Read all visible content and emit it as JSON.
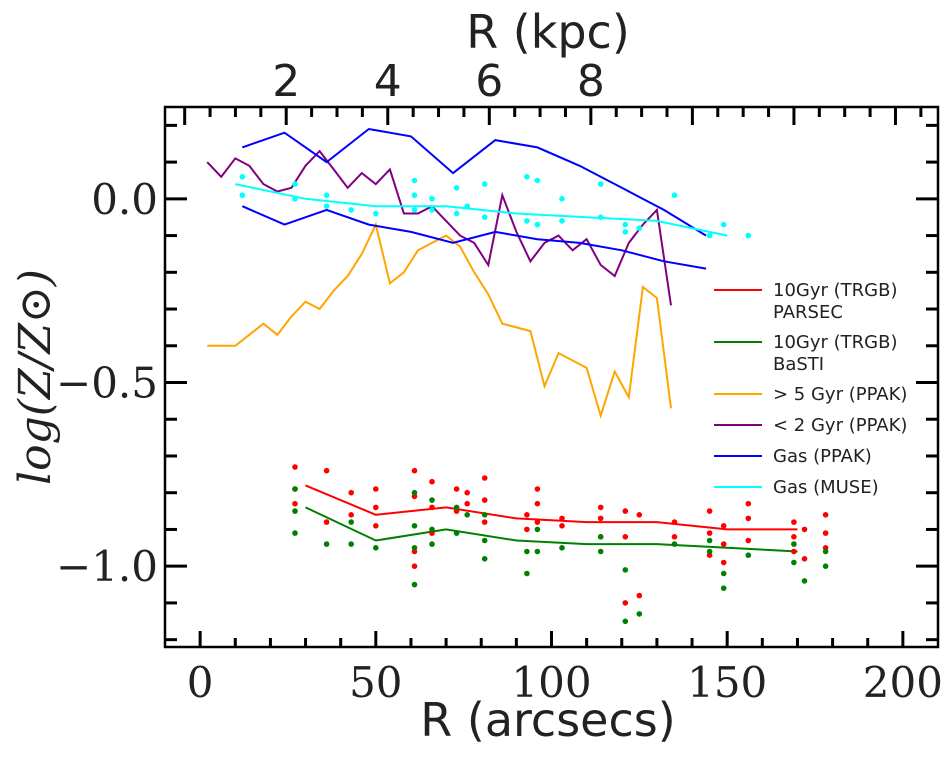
{
  "chart_data": {
    "type": "line",
    "xlabel": "R (arcsecs)",
    "ylabel": "log(Z/Z⊙)",
    "top_xlabel": "R (kpc)",
    "xlim": [
      -10,
      210
    ],
    "ylim": [
      -1.22,
      0.25
    ],
    "x_ticks": [
      0,
      50,
      100,
      150,
      200
    ],
    "x_tick_labels": [
      "0",
      "50",
      "100",
      "150",
      "200"
    ],
    "y_ticks": [
      0.0,
      -0.5,
      -1.0
    ],
    "y_tick_labels": [
      "0.0",
      "−0.5",
      "−1.0"
    ],
    "top_ticks_arcsec": [
      24.5,
      53.4,
      82.3,
      111.2
    ],
    "top_tick_labels": [
      "2",
      "4",
      "6",
      "8"
    ],
    "grid": false,
    "legend_position": "center-right",
    "series": [
      {
        "name": "10Gyr (TRGB)\nPARSEC",
        "color": "#ff0000",
        "x": [
          30,
          50,
          70,
          90,
          110,
          130,
          150,
          170
        ],
        "y": [
          -0.78,
          -0.86,
          -0.84,
          -0.87,
          -0.88,
          -0.88,
          -0.9,
          -0.9
        ]
      },
      {
        "name": "10Gyr (TRGB)\nBaSTI",
        "color": "#008000",
        "x": [
          30,
          50,
          70,
          90,
          110,
          130,
          150,
          170
        ],
        "y": [
          -0.84,
          -0.93,
          -0.9,
          -0.93,
          -0.94,
          -0.94,
          -0.95,
          -0.96
        ]
      },
      {
        "name": "> 5 Gyr (PPAK)",
        "color": "#ffa500",
        "x": [
          2,
          6,
          10,
          14,
          18,
          22,
          26,
          30,
          34,
          38,
          42,
          46,
          50,
          54,
          58,
          62,
          66,
          70,
          74,
          78,
          82,
          86,
          90,
          94,
          98,
          102,
          106,
          110,
          114,
          118,
          122,
          126,
          130,
          134
        ],
        "y": [
          -0.4,
          -0.4,
          -0.4,
          -0.37,
          -0.34,
          -0.37,
          -0.32,
          -0.28,
          -0.3,
          -0.25,
          -0.21,
          -0.15,
          -0.07,
          -0.23,
          -0.2,
          -0.14,
          -0.12,
          -0.1,
          -0.13,
          -0.2,
          -0.26,
          -0.34,
          -0.35,
          -0.36,
          -0.51,
          -0.42,
          -0.44,
          -0.46,
          -0.59,
          -0.47,
          -0.54,
          -0.24,
          -0.27,
          -0.57
        ]
      },
      {
        "name": "< 2 Gyr (PPAK)",
        "color": "#800080",
        "x": [
          2,
          6,
          10,
          14,
          18,
          22,
          26,
          30,
          34,
          38,
          42,
          46,
          50,
          54,
          58,
          62,
          66,
          70,
          74,
          78,
          82,
          86,
          90,
          94,
          98,
          102,
          106,
          110,
          114,
          118,
          122,
          126,
          130,
          134
        ],
        "y": [
          0.1,
          0.06,
          0.11,
          0.09,
          0.04,
          0.02,
          0.03,
          0.09,
          0.13,
          0.08,
          0.03,
          0.07,
          0.04,
          0.08,
          -0.04,
          -0.04,
          -0.02,
          -0.06,
          -0.1,
          -0.12,
          -0.18,
          0.01,
          -0.09,
          -0.17,
          -0.12,
          -0.1,
          -0.14,
          -0.11,
          -0.18,
          -0.21,
          -0.12,
          -0.07,
          -0.03,
          -0.29
        ]
      },
      {
        "name": "Gas (PPAK)",
        "color": "#0000ff",
        "x": [
          12,
          24,
          36,
          48,
          60,
          72,
          84,
          96,
          108,
          120,
          132,
          144
        ],
        "y": [
          0.14,
          0.18,
          0.1,
          0.19,
          0.17,
          0.07,
          0.16,
          0.14,
          0.09,
          0.03,
          -0.03,
          -0.1
        ]
      },
      {
        "name": "Gas (PPAK) lower",
        "color": "#0000ff",
        "x": [
          12,
          24,
          36,
          48,
          60,
          72,
          84,
          96,
          108,
          120,
          132,
          144
        ],
        "y": [
          -0.02,
          -0.07,
          -0.03,
          -0.07,
          -0.09,
          -0.12,
          -0.09,
          -0.11,
          -0.12,
          -0.14,
          -0.17,
          -0.19
        ]
      },
      {
        "name": "Gas (MUSE)",
        "color": "#00ffff",
        "x": [
          10,
          30,
          50,
          70,
          90,
          110,
          130,
          150
        ],
        "y": [
          0.04,
          0.0,
          -0.02,
          -0.02,
          -0.04,
          -0.05,
          -0.06,
          -0.1
        ]
      }
    ],
    "scatter": [
      {
        "name": "PARSEC points",
        "color": "#ff0000",
        "x": [
          27,
          27,
          27,
          36,
          36,
          43,
          43,
          50,
          50,
          50,
          61,
          61,
          61,
          61,
          66,
          66,
          66,
          73,
          73,
          76,
          76,
          81,
          81,
          81,
          93,
          93,
          96,
          96,
          96,
          103,
          103,
          114,
          114,
          114,
          121,
          121,
          121,
          125,
          125,
          135,
          135,
          145,
          145,
          145,
          149,
          149,
          149,
          156,
          156,
          156,
          169,
          169,
          169,
          172,
          172,
          178,
          178,
          178
        ],
        "y": [
          -0.73,
          -0.79,
          -0.83,
          -0.74,
          -0.88,
          -0.8,
          -0.86,
          -0.79,
          -0.84,
          -0.89,
          -0.74,
          -0.81,
          -0.96,
          -1.0,
          -0.77,
          -0.84,
          -0.91,
          -0.79,
          -0.85,
          -0.8,
          -0.83,
          -0.76,
          -0.82,
          -0.88,
          -0.86,
          -0.9,
          -0.79,
          -0.83,
          -0.88,
          -0.87,
          -0.89,
          -0.84,
          -0.87,
          -0.92,
          -0.85,
          -0.92,
          -1.1,
          -0.86,
          -1.08,
          -0.88,
          -0.92,
          -0.85,
          -0.91,
          -0.97,
          -0.89,
          -0.94,
          -0.99,
          -0.83,
          -0.87,
          -0.93,
          -0.88,
          -0.92,
          -0.96,
          -0.9,
          -0.98,
          -0.86,
          -0.91,
          -0.95
        ]
      },
      {
        "name": "BaSTI points",
        "color": "#008000",
        "x": [
          27,
          27,
          27,
          36,
          43,
          43,
          50,
          61,
          61,
          61,
          61,
          66,
          66,
          66,
          73,
          73,
          76,
          81,
          81,
          81,
          93,
          93,
          96,
          96,
          103,
          114,
          114,
          121,
          121,
          125,
          135,
          145,
          145,
          149,
          149,
          156,
          169,
          169,
          172,
          178,
          178
        ],
        "y": [
          -0.79,
          -0.85,
          -0.91,
          -0.94,
          -0.88,
          -0.94,
          -0.95,
          -0.8,
          -0.89,
          -0.95,
          -1.05,
          -0.82,
          -0.9,
          -0.94,
          -0.84,
          -0.91,
          -0.86,
          -0.86,
          -0.93,
          -0.98,
          -0.96,
          -1.02,
          -0.9,
          -0.96,
          -0.95,
          -0.92,
          -0.96,
          -1.01,
          -1.15,
          -1.13,
          -0.94,
          -0.93,
          -0.96,
          -1.02,
          -1.06,
          -0.97,
          -0.94,
          -0.99,
          -1.04,
          -0.96,
          -1.0
        ]
      },
      {
        "name": "MUSE points",
        "color": "#00ffff",
        "x": [
          12,
          12,
          27,
          27,
          36,
          36,
          43,
          50,
          61,
          61,
          61,
          66,
          66,
          73,
          73,
          76,
          81,
          81,
          93,
          93,
          96,
          96,
          103,
          103,
          114,
          114,
          121,
          121,
          125,
          135,
          145,
          149,
          156
        ],
        "y": [
          0.06,
          0.01,
          0.04,
          0.0,
          0.01,
          -0.02,
          -0.03,
          -0.04,
          0.05,
          0.01,
          -0.03,
          0.0,
          -0.03,
          0.03,
          -0.04,
          -0.02,
          0.04,
          -0.05,
          0.06,
          -0.06,
          0.05,
          -0.07,
          0.0,
          -0.06,
          0.04,
          -0.05,
          -0.07,
          -0.09,
          -0.08,
          0.01,
          -0.1,
          -0.07,
          -0.1
        ]
      }
    ],
    "legend": [
      {
        "label": "10Gyr (TRGB)\nPARSEC",
        "color": "#ff0000"
      },
      {
        "label": "10Gyr (TRGB)\nBaSTI",
        "color": "#008000"
      },
      {
        "label": "> 5 Gyr (PPAK)",
        "color": "#ffa500"
      },
      {
        "label": "< 2 Gyr (PPAK)",
        "color": "#800080"
      },
      {
        "label": "Gas (PPAK)",
        "color": "#0000ff"
      },
      {
        "label": "Gas (MUSE)",
        "color": "#00ffff"
      }
    ]
  }
}
